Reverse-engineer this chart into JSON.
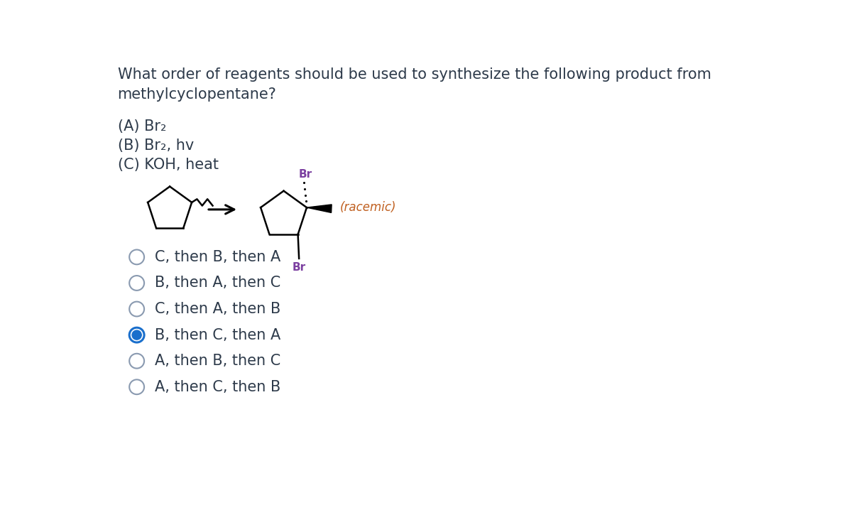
{
  "title_line1": "What order of reagents should be used to synthesize the following product from",
  "title_line2": "methylcyclopentane?",
  "reagent_A": "(A) Br₂",
  "reagent_B": "(B) Br₂, hv",
  "reagent_C": "(C) KOH, heat",
  "racemic_label": "(racemic)",
  "br_label": "Br",
  "options": [
    "C, then B, then A",
    "B, then A, then C",
    "C, then A, then B",
    "B, then C, then A",
    "A, then B, then C",
    "A, then C, then B"
  ],
  "selected_option": 3,
  "bg_color": "#ffffff",
  "text_color": "#2d3a4a",
  "radio_color": "#2d3a4a",
  "selected_radio_color": "#1a6fcc",
  "br_color": "#7b3fa0",
  "racemic_color": "#c06020",
  "font_size_title": 15,
  "font_size_reagents": 15,
  "font_size_options": 15,
  "font_size_mol": 11
}
